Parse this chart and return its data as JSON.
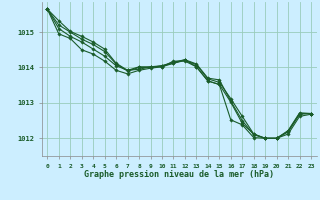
{
  "background_color": "#cceeff",
  "grid_color": "#99ccbb",
  "line_color": "#1a5c2a",
  "title": "Graphe pression niveau de la mer (hPa)",
  "xlim": [
    -0.5,
    23.5
  ],
  "ylim": [
    1011.5,
    1015.85
  ],
  "yticks": [
    1012,
    1013,
    1014,
    1015
  ],
  "xticks": [
    0,
    1,
    2,
    3,
    4,
    5,
    6,
    7,
    8,
    9,
    10,
    11,
    12,
    13,
    14,
    15,
    16,
    17,
    18,
    19,
    20,
    21,
    22,
    23
  ],
  "series": [
    [
      1015.65,
      1015.2,
      1015.0,
      1014.8,
      1014.65,
      1014.45,
      1014.1,
      1013.9,
      1014.0,
      1014.0,
      1014.05,
      1014.15,
      1014.22,
      1014.1,
      1013.7,
      1013.65,
      1013.05,
      1012.5,
      1012.1,
      1012.0,
      1012.0,
      1012.2,
      1012.7,
      1012.7
    ],
    [
      1015.65,
      1015.1,
      1014.88,
      1014.72,
      1014.52,
      1014.32,
      1014.05,
      1013.92,
      1013.95,
      1014.02,
      1014.05,
      1014.12,
      1014.2,
      1014.08,
      1013.68,
      1013.58,
      1013.12,
      1012.62,
      1012.12,
      1012.0,
      1012.0,
      1012.18,
      1012.68,
      1012.7
    ],
    [
      1015.65,
      1014.95,
      1014.82,
      1014.5,
      1014.38,
      1014.18,
      1013.92,
      1013.82,
      1013.92,
      1013.98,
      1014.02,
      1014.18,
      1014.18,
      1014.02,
      1013.62,
      1013.52,
      1012.52,
      1012.38,
      1012.02,
      1012.0,
      1012.0,
      1012.12,
      1012.62,
      1012.68
    ],
    [
      1015.65,
      1015.32,
      1015.02,
      1014.88,
      1014.72,
      1014.52,
      1014.12,
      1013.92,
      1014.02,
      1014.02,
      1014.02,
      1014.12,
      1014.22,
      1014.02,
      1013.62,
      1013.52,
      1013.02,
      1012.42,
      1012.12,
      1012.0,
      1012.0,
      1012.22,
      1012.72,
      1012.7
    ]
  ]
}
